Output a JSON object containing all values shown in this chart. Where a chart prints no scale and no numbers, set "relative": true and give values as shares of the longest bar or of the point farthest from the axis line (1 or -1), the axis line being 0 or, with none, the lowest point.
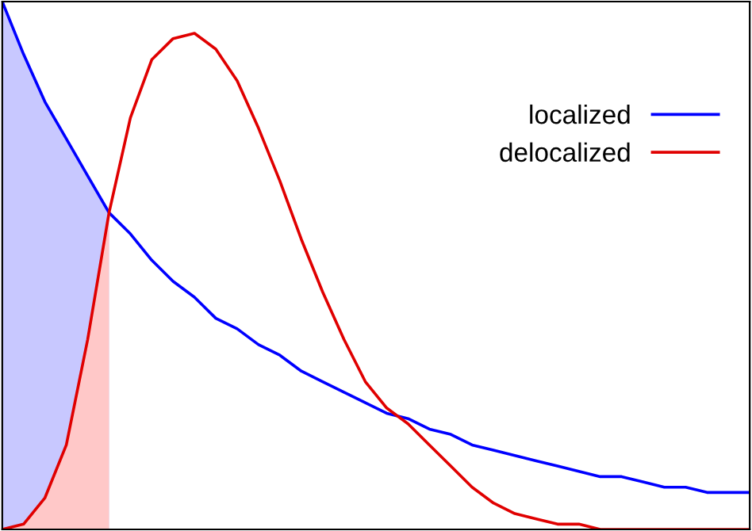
{
  "chart_data": {
    "type": "line",
    "relative": true,
    "legend": "top right",
    "grid": false,
    "categories": [
      null,
      null,
      null,
      null,
      null,
      null,
      null,
      null,
      null,
      null,
      null,
      null,
      null,
      null,
      null,
      null,
      null,
      null,
      null,
      null,
      null,
      null,
      null,
      null,
      null,
      null,
      null,
      null,
      null,
      null,
      null,
      null,
      null,
      null,
      null,
      null
    ],
    "series": [
      {
        "type": "area",
        "color": "#c8c8ff",
        "values": [
          1.0,
          0.9,
          0.81,
          0.74,
          0.67,
          0.6,
          null,
          null,
          null,
          null,
          null,
          null,
          null,
          null,
          null,
          null,
          null,
          null,
          null,
          null,
          null,
          null,
          null,
          null,
          null,
          null,
          null,
          null,
          null,
          null,
          null,
          null,
          null,
          null,
          null,
          null
        ]
      },
      {
        "type": "area",
        "color": "#ffc8c8",
        "values": [
          0,
          0.01,
          0.06,
          0.16,
          0.36,
          0.6,
          null,
          null,
          null,
          null,
          null,
          null,
          null,
          null,
          null,
          null,
          null,
          null,
          null,
          null,
          null,
          null,
          null,
          null,
          null,
          null,
          null,
          null,
          null,
          null,
          null,
          null,
          null,
          null,
          null,
          null
        ]
      },
      {
        "name": "localized",
        "color": "#0000ff",
        "values": [
          1.0,
          0.9,
          0.81,
          0.74,
          0.67,
          0.6,
          0.56,
          0.51,
          0.47,
          0.44,
          0.4,
          0.38,
          0.35,
          0.33,
          0.3,
          0.28,
          0.26,
          0.24,
          0.22,
          0.21,
          0.19,
          0.18,
          0.16,
          0.15,
          0.14,
          0.13,
          0.12,
          0.11,
          0.1,
          0.1,
          0.09,
          0.08,
          0.08,
          0.07,
          0.07,
          0.07
        ]
      },
      {
        "name": "delocalized",
        "color": "#e00000",
        "values": [
          0,
          0.01,
          0.06,
          0.16,
          0.36,
          0.6,
          0.78,
          0.89,
          0.93,
          0.94,
          0.91,
          0.85,
          0.76,
          0.66,
          0.55,
          0.45,
          0.36,
          0.28,
          0.23,
          0.2,
          0.16,
          0.12,
          0.08,
          0.05,
          0.03,
          0.02,
          0.01,
          0.01,
          0,
          0,
          0,
          0,
          0,
          0,
          0,
          0
        ]
      }
    ]
  }
}
